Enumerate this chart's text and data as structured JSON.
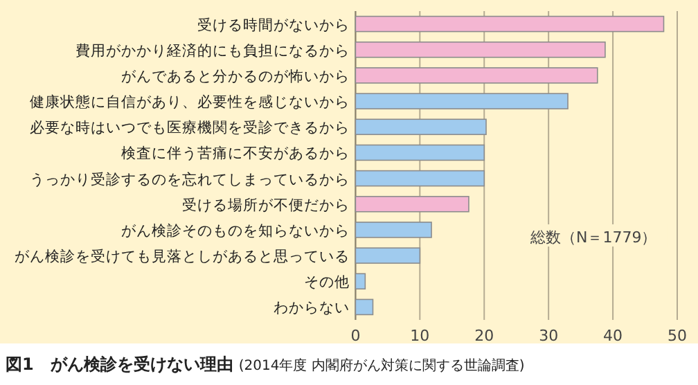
{
  "chart_data": {
    "type": "bar",
    "orientation": "horizontal",
    "title": "図1　がん検診を受けない理由",
    "subtitle": "(2014年度 内閣府がん対策に関する世論調査)",
    "categories": [
      "受ける時間がないから",
      "費用がかかり経済的にも負担になるから",
      "がんであると分かるのが怖いから",
      "健康状態に自信があり、必要性を感じないから",
      "必要な時はいつでも医療機関を受診できるから",
      "検査に伴う苦痛に不安があるから",
      "うっかり受診するのを忘れてしまっているから",
      "受ける場所が不便だから",
      "がん検診そのものを知らないから",
      "がん検診を受けても見落としがあると思っている",
      "その他",
      "わからない"
    ],
    "values": [
      47.9,
      38.8,
      37.6,
      33.0,
      20.3,
      20.0,
      20.0,
      17.6,
      11.8,
      10.0,
      1.5,
      2.7
    ],
    "colors": [
      "#f4b6d2",
      "#f4b6d2",
      "#f4b6d2",
      "#a0cbee",
      "#a0cbee",
      "#a0cbee",
      "#a0cbee",
      "#f4b6d2",
      "#a0cbee",
      "#a0cbee",
      "#a0cbee",
      "#a0cbee"
    ],
    "xlim": [
      0,
      50
    ],
    "xticks": [
      0,
      10,
      20,
      30,
      40,
      50
    ],
    "grid": "x",
    "annotations": [
      "総数（N＝1779）"
    ]
  }
}
